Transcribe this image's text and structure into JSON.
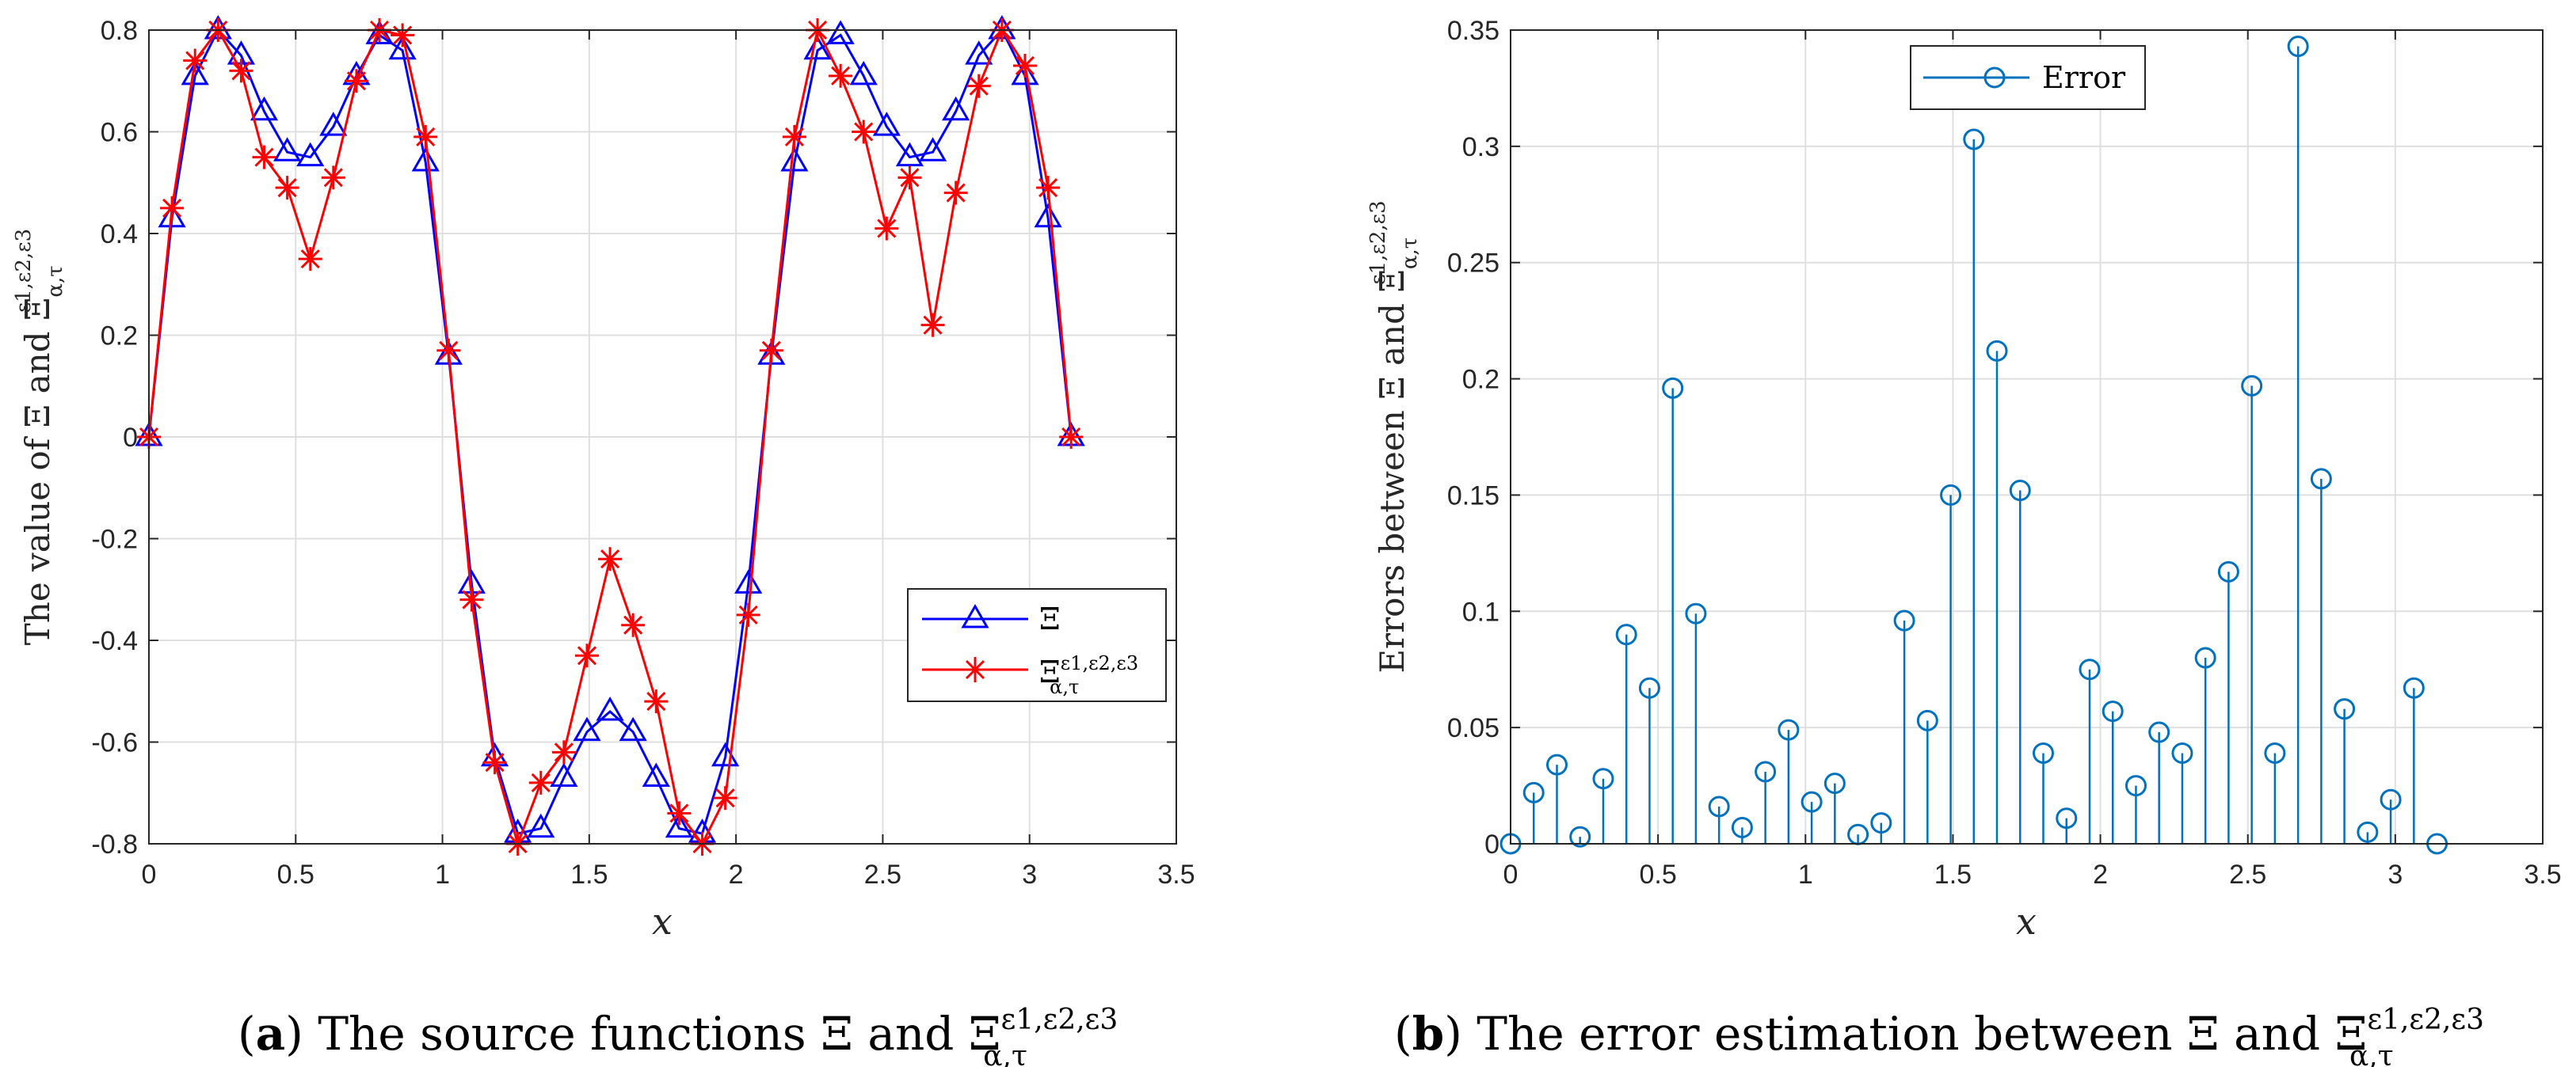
{
  "chart_data": [
    {
      "type": "line",
      "panel": "a",
      "caption_letter": "a",
      "caption_text": "The source functions Ξ and Ξ",
      "caption_sup": "ε1,ε2,ε3",
      "caption_sub": "α,τ",
      "ylabel": "The value of Ξ and Ξ",
      "ylabel_sup": "ε1,ε2,ε3",
      "ylabel_sub": "α,τ",
      "xlabel": "x",
      "xlim": [
        0,
        3.5
      ],
      "ylim": [
        -0.8,
        0.8
      ],
      "xticks": [
        0,
        0.5,
        1,
        1.5,
        2,
        2.5,
        3,
        3.5
      ],
      "xtick_labels": [
        "0",
        "0.5",
        "1",
        "1.5",
        "2",
        "2.5",
        "3",
        "3.5"
      ],
      "yticks": [
        -0.8,
        -0.6,
        -0.4,
        -0.2,
        0,
        0.2,
        0.4,
        0.6,
        0.8
      ],
      "ytick_labels": [
        "-0.8",
        "-0.6",
        "-0.4",
        "-0.2",
        "0",
        "0.2",
        "0.4",
        "0.6",
        "0.8"
      ],
      "grid": true,
      "legend_position": "lower-right",
      "series": [
        {
          "name": "Ξ",
          "color": "#0000ff",
          "marker": "triangle",
          "x": [
            0,
            0.0785,
            0.1571,
            0.2356,
            0.3142,
            0.3927,
            0.4712,
            0.5498,
            0.6283,
            0.7069,
            0.7854,
            0.8639,
            0.9425,
            1.021,
            1.0996,
            1.1781,
            1.2566,
            1.3352,
            1.4137,
            1.4923,
            1.5708,
            1.6493,
            1.7279,
            1.8064,
            1.885,
            1.9635,
            2.042,
            2.1206,
            2.1991,
            2.2777,
            2.3562,
            2.4347,
            2.5133,
            2.5918,
            2.6704,
            2.7489,
            2.8274,
            2.906,
            2.9845,
            3.0631,
            3.1416
          ],
          "y": [
            0,
            0.43,
            0.71,
            0.8,
            0.75,
            0.64,
            0.56,
            0.55,
            0.61,
            0.71,
            0.79,
            0.76,
            0.54,
            0.16,
            -0.29,
            -0.63,
            -0.78,
            -0.77,
            -0.67,
            -0.58,
            -0.54,
            -0.58,
            -0.67,
            -0.77,
            -0.78,
            -0.63,
            -0.29,
            0.16,
            0.54,
            0.76,
            0.79,
            0.71,
            0.61,
            0.55,
            0.56,
            0.64,
            0.75,
            0.8,
            0.71,
            0.43,
            0
          ]
        },
        {
          "name": "Ξ",
          "name_sup": "ε1,ε2,ε3",
          "name_sub": "α,τ",
          "color": "#ff0000",
          "marker": "asterisk",
          "x": [
            0,
            0.0785,
            0.1571,
            0.2356,
            0.3142,
            0.3927,
            0.4712,
            0.5498,
            0.6283,
            0.7069,
            0.7854,
            0.8639,
            0.9425,
            1.021,
            1.0996,
            1.1781,
            1.2566,
            1.3352,
            1.4137,
            1.4923,
            1.5708,
            1.6493,
            1.7279,
            1.8064,
            1.885,
            1.9635,
            2.042,
            2.1206,
            2.1991,
            2.2777,
            2.3562,
            2.4347,
            2.5133,
            2.5918,
            2.6704,
            2.7489,
            2.8274,
            2.906,
            2.9845,
            3.0631,
            3.1416
          ],
          "y": [
            0,
            0.45,
            0.74,
            0.8,
            0.72,
            0.55,
            0.49,
            0.35,
            0.51,
            0.7,
            0.8,
            0.79,
            0.59,
            0.17,
            -0.32,
            -0.64,
            -0.8,
            -0.68,
            -0.62,
            -0.43,
            -0.24,
            -0.37,
            -0.52,
            -0.74,
            -0.8,
            -0.71,
            -0.35,
            0.17,
            0.59,
            0.8,
            0.71,
            0.6,
            0.41,
            0.51,
            0.22,
            0.48,
            0.69,
            0.8,
            0.73,
            0.49,
            0
          ]
        }
      ]
    },
    {
      "type": "stem",
      "panel": "b",
      "caption_letter": "b",
      "caption_text": "The error estimation between Ξ and Ξ",
      "caption_sup": "ε1,ε2,ε3",
      "caption_sub": "α,τ",
      "ylabel": "Errors between Ξ and Ξ",
      "ylabel_sup": "ε1,ε2,ε3",
      "ylabel_sub": "α,τ",
      "xlabel": "x",
      "xlim": [
        0,
        3.5
      ],
      "ylim": [
        0,
        0.35
      ],
      "xticks": [
        0,
        0.5,
        1,
        1.5,
        2,
        2.5,
        3,
        3.5
      ],
      "xtick_labels": [
        "0",
        "0.5",
        "1",
        "1.5",
        "2",
        "2.5",
        "3",
        "3.5"
      ],
      "yticks": [
        0,
        0.05,
        0.1,
        0.15,
        0.2,
        0.25,
        0.3,
        0.35
      ],
      "ytick_labels": [
        "0",
        "0.05",
        "0.1",
        "0.15",
        "0.2",
        "0.25",
        "0.3",
        "0.35"
      ],
      "grid": true,
      "legend_position": "top-center",
      "series": [
        {
          "name": "Error",
          "color": "#0072bd",
          "marker": "circle",
          "x": [
            0,
            0.0785,
            0.1571,
            0.2356,
            0.3142,
            0.3927,
            0.4712,
            0.5498,
            0.6283,
            0.7069,
            0.7854,
            0.8639,
            0.9425,
            1.021,
            1.0996,
            1.1781,
            1.2566,
            1.3352,
            1.4137,
            1.4923,
            1.5708,
            1.6493,
            1.7279,
            1.8064,
            1.885,
            1.9635,
            2.042,
            2.1206,
            2.1991,
            2.2777,
            2.3562,
            2.4347,
            2.5133,
            2.5918,
            2.6704,
            2.7489,
            2.8274,
            2.906,
            2.9845,
            3.0631,
            3.1416
          ],
          "y": [
            0,
            0.022,
            0.034,
            0.003,
            0.028,
            0.09,
            0.067,
            0.196,
            0.099,
            0.016,
            0.007,
            0.031,
            0.049,
            0.018,
            0.026,
            0.004,
            0.009,
            0.096,
            0.053,
            0.15,
            0.303,
            0.212,
            0.152,
            0.039,
            0.011,
            0.075,
            0.057,
            0.025,
            0.048,
            0.039,
            0.08,
            0.117,
            0.197,
            0.039,
            0.343,
            0.157,
            0.058,
            0.005,
            0.019,
            0.067,
            0
          ]
        }
      ]
    }
  ]
}
